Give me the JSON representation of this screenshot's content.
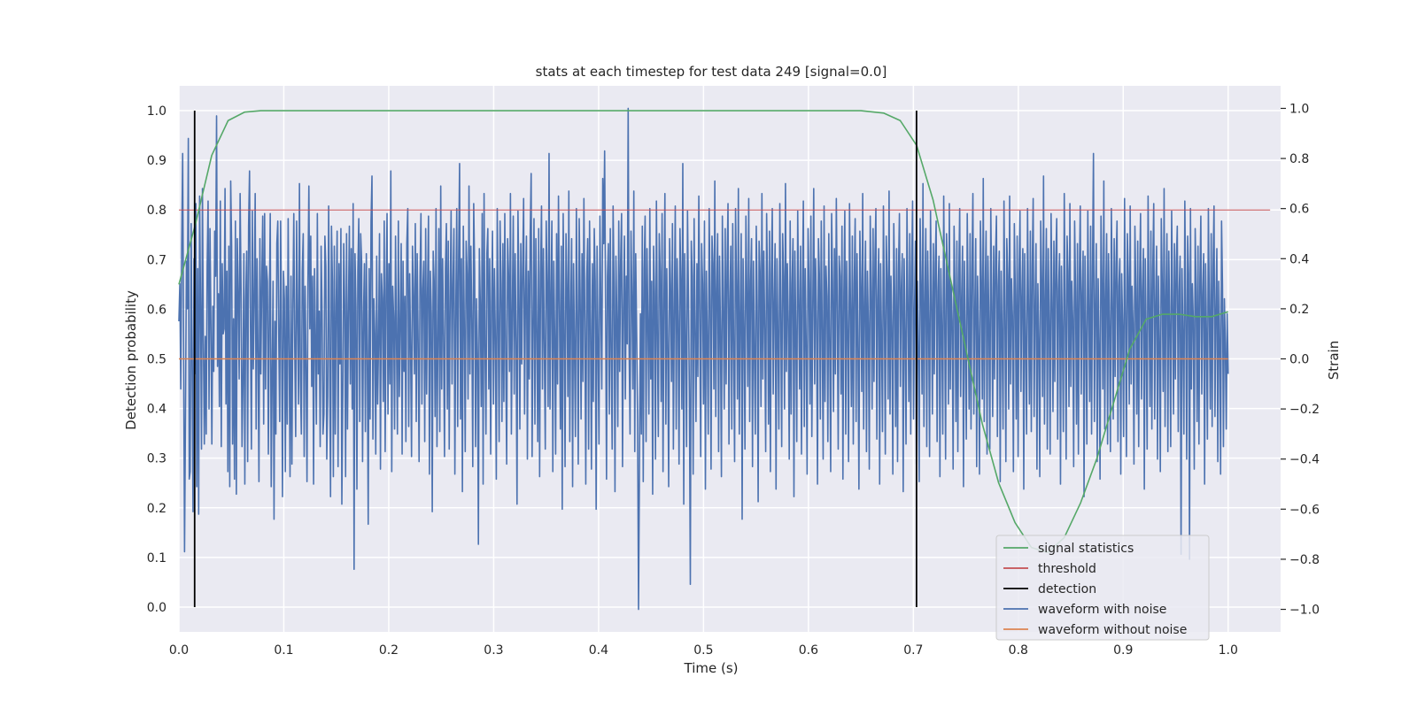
{
  "chart_data": {
    "type": "line",
    "title": "stats at each timestep for test data 249 [signal=0.0]",
    "xlabel": "Time (s)",
    "ylabel": "Detection probability",
    "ylabel_right": "Strain",
    "xlim": [
      0.0,
      1.05
    ],
    "ylim": [
      -0.05,
      1.05
    ],
    "ylim_right": [
      -1.09,
      1.09
    ],
    "xticks": [
      0.0,
      0.1,
      0.2,
      0.3,
      0.4,
      0.5,
      0.6,
      0.7,
      0.8,
      0.9,
      1.0
    ],
    "xtick_labels": [
      "0.0",
      "0.1",
      "0.2",
      "0.3",
      "0.4",
      "0.5",
      "0.6",
      "0.7",
      "0.8",
      "0.9",
      "1.0"
    ],
    "yticks": [
      0.0,
      0.1,
      0.2,
      0.3,
      0.4,
      0.5,
      0.6,
      0.7,
      0.8,
      0.9,
      1.0
    ],
    "ytick_labels": [
      "0.0",
      "0.1",
      "0.2",
      "0.3",
      "0.4",
      "0.5",
      "0.6",
      "0.7",
      "0.8",
      "0.9",
      "1.0"
    ],
    "yticks_right": [
      -1.0,
      -0.8,
      -0.6,
      -0.4,
      -0.2,
      0.0,
      0.2,
      0.4,
      0.6,
      0.8,
      1.0
    ],
    "ytick_labels_right": [
      "−1.0",
      "−0.8",
      "−0.6",
      "−0.4",
      "−0.2",
      "0.0",
      "0.2",
      "0.4",
      "0.6",
      "0.8",
      "1.0"
    ],
    "grid": true,
    "legend_position": "lower-right",
    "colors": {
      "background": "#eaeaf2",
      "grid": "#ffffff",
      "signal_statistics": "#55a868",
      "threshold": "#c44e52",
      "detection": "#000000",
      "waveform_noise": "#4c72b0",
      "waveform_clean": "#dd8452"
    },
    "legend": [
      {
        "label": "signal statistics",
        "key": "signal_statistics"
      },
      {
        "label": "threshold",
        "key": "threshold"
      },
      {
        "label": "detection",
        "key": "detection"
      },
      {
        "label": "waveform with noise",
        "key": "waveform_noise"
      },
      {
        "label": "waveform without noise",
        "key": "waveform_clean"
      }
    ],
    "signal_statistics": {
      "x": [
        0.0,
        0.0156,
        0.0313,
        0.0469,
        0.0625,
        0.0781,
        0.1,
        0.2,
        0.3,
        0.4,
        0.5,
        0.6,
        0.65,
        0.6719,
        0.6875,
        0.7031,
        0.7188,
        0.7344,
        0.75,
        0.7656,
        0.7813,
        0.7969,
        0.8125,
        0.8281,
        0.8438,
        0.8594,
        0.875,
        0.8906,
        0.9063,
        0.9219,
        0.9375,
        0.9531,
        0.9688,
        0.9844,
        1.0
      ],
      "y": [
        0.65,
        0.77,
        0.91,
        0.98,
        0.997,
        1.0,
        1.0,
        1.0,
        1.0,
        1.0,
        1.0,
        1.0,
        1.0,
        0.995,
        0.98,
        0.93,
        0.82,
        0.67,
        0.52,
        0.37,
        0.25,
        0.17,
        0.12,
        0.11,
        0.14,
        0.21,
        0.3,
        0.41,
        0.52,
        0.58,
        0.59,
        0.59,
        0.585,
        0.585,
        0.595
      ]
    },
    "threshold": {
      "y": 0.8,
      "x_start": 0.0,
      "x_end": 1.04
    },
    "detections": [
      0.015,
      0.703
    ],
    "detection_range": [
      0.0,
      1.0
    ],
    "waveform_without_noise": {
      "x_start": 0.0,
      "x_end": 1.0,
      "value": 0.0
    },
    "waveform_with_noise": {
      "x_start": 0.0,
      "x_end": 1.0,
      "y": [
        0.15,
        0.3,
        -0.12,
        0.45,
        0.82,
        0.05,
        -0.77,
        -0.22,
        0.39,
        0.2,
        0.88,
        -0.48,
        -0.45,
        0.54,
        -0.02,
        -0.61,
        0.4,
        -0.06,
        0.62,
        -0.51,
        0.36,
        -0.62,
        0.65,
        0.21,
        -0.36,
        0.68,
        0.07,
        -0.34,
        0.09,
        -0.3,
        0.37,
        0.63,
        -0.2,
        0.52,
        0.14,
        -0.34,
        0.21,
        -0.05,
        0.51,
        0.33,
        0.97,
        -0.03,
        0.26,
        -0.19,
        0.63,
        -0.35,
        0.38,
        0.1,
        0.12,
        0.68,
        -0.18,
        0.35,
        -0.45,
        0.45,
        -0.51,
        0.71,
        0.45,
        -0.34,
        0.16,
        -0.48,
        0.55,
        -0.54,
        0.48,
        0.26,
        -0.08,
        0.66,
        0.28,
        -0.35,
        -0.1,
        0.42,
        -0.5,
        0.24,
        0.43,
        -0.41,
        0.53,
        0.75,
        0.13,
        -0.36,
        0.59,
        -0.04,
        0.24,
        0.66,
        -0.28,
        0.4,
        0.02,
        -0.49,
        0.48,
        -0.06,
        0.31,
        0.57,
        -0.26,
        0.58,
        -0.12,
        0.37,
        0.31,
        -0.38,
        0.2,
        0.58,
        -0.51,
        -0.08,
        0.31,
        -0.64,
        0.15,
        -0.3,
        0.46,
        0.55,
        0.1,
        -0.25,
        0.55,
        0.12,
        -0.55,
        0.35,
        0.24,
        -0.45,
        0.29,
        -0.26,
        0.56,
        0.05,
        -0.47,
        0.33,
        -0.42,
        0.21,
        0.58,
        0.05,
        -0.31,
        0.55,
        0.16,
        -0.18,
        0.7,
        -0.08,
        -0.3,
        0.35,
        0.5,
        -0.39,
        0.29,
        -0.02,
        -0.49,
        0.3,
        0.69,
        0.12,
        0.49,
        -0.11,
        0.33,
        -0.5,
        0.36,
        0.07,
        -0.26,
        0.58,
        -0.06,
        0.19,
        -0.35,
        0.45,
        0.19,
        -0.3,
        -0.22,
        0.49,
        0.37,
        -0.4,
        -0.15,
        0.61,
        0.03,
        -0.55,
        0.53,
        0.31,
        -0.47,
        0.45,
        -0.3,
        0.21,
        0.51,
        -0.43,
        0.38,
        -0.02,
        0.52,
        -0.58,
        -0.15,
        0.46,
        0.22,
        -0.47,
        0.5,
        -0.28,
        0.19,
        0.53,
        -0.1,
        0.44,
        -0.2,
        0.62,
        -0.84,
        0.42,
        0.2,
        -0.52,
        0.35,
        0.56,
        -0.25,
        0.5,
        0.39,
        -0.41,
        0.18,
        0.38,
        -0.29,
        0.42,
        0.03,
        -0.66,
        0.36,
        -0.24,
        0.55,
        0.73,
        -0.32,
        0.24,
        0.1,
        -0.38,
        0.41,
        -0.18,
        0.07,
        0.5,
        -0.44,
        0.34,
        0.24,
        -0.17,
        0.55,
        -0.37,
        0.27,
        0.58,
        -0.22,
        0.38,
        -0.1,
        0.75,
        -0.45,
        0.29,
        0.17,
        -0.28,
        0.49,
        0.08,
        -0.3,
        0.55,
        -0.15,
        0.14,
        0.46,
        -0.38,
        0.39,
        -0.05,
        0.25,
        -0.33,
        0.46,
        0.6,
        -0.27,
        0.34,
        0.05,
        -0.39,
        0.45,
        0.25,
        -0.06,
        0.54,
        -0.25,
        0.42,
        0.08,
        -0.41,
        0.33,
        0.58,
        -0.18,
        0.28,
        0.39,
        -0.33,
        0.52,
        -0.14,
        0.27,
        0.57,
        -0.46,
        0.35,
        0.18,
        -0.61,
        0.43,
        0.31,
        -0.23,
        0.6,
        -0.35,
        0.06,
        0.52,
        -0.29,
        0.69,
        -0.12,
        0.4,
        0.08,
        -0.39,
        0.36,
        0.54,
        -0.2,
        0.47,
        -0.36,
        0.24,
        0.59,
        -0.1,
        0.3,
        0.52,
        -0.46,
        0.2,
        0.6,
        -0.27,
        0.41,
        0.78,
        -0.24,
        0.4,
        -0.53,
        0.53,
        0.14,
        -0.37,
        0.47,
        0.34,
        -0.16,
        0.69,
        -0.06,
        0.45,
        0.16,
        -0.43,
        0.62,
        0.35,
        -0.35,
        0.24,
        0.02,
        -0.74,
        0.44,
        0.22,
        -0.19,
        0.58,
        -0.5,
        0.66,
        0.05,
        -0.3,
        0.42,
        0.52,
        -0.12,
        0.4,
        -0.38,
        0.22,
        0.51,
        -0.18,
        0.36,
        0.09,
        -0.48,
        0.6,
        0.16,
        -0.33,
        0.55,
        0.3,
        -0.25,
        0.46,
        -0.17,
        0.58,
        0.01,
        -0.42,
        0.48,
        0.34,
        -0.05,
        0.66,
        -0.3,
        0.19,
        0.57,
        -0.14,
        0.42,
        0.07,
        -0.58,
        0.59,
        0.28,
        -0.28,
        0.46,
        -0.02,
        0.37,
        0.64,
        -0.22,
        0.26,
        0.49,
        -0.4,
        0.35,
        -0.08,
        0.5,
        0.74,
        -0.39,
        0.14,
        0.56,
        -0.26,
        0.48,
        0.11,
        -0.33,
        0.52,
        -0.47,
        0.34,
        0.61,
        -0.12,
        0.44,
        0.03,
        -0.36,
        0.55,
        0.3,
        -0.19,
        0.82,
        -0.2,
        0.24,
        0.55,
        -0.45,
        0.39,
        0.09,
        -0.38,
        0.5,
        -0.1,
        0.65,
        0.22,
        -0.28,
        0.45,
        -0.6,
        0.58,
        0.12,
        -0.43,
        0.5,
        0.29,
        -0.15,
        0.67,
        -0.33,
        0.2,
        0.48,
        -0.51,
        0.38,
        0.04,
        -0.31,
        0.6,
        0.18,
        -0.42,
        0.56,
        0.26,
        -0.24,
        0.42,
        -0.09,
        0.64,
        0.15,
        -0.5,
        0.32,
        0.48,
        -0.36,
        0.55,
        0.13,
        -0.44,
        0.38,
        -0.17,
        0.52,
        0.31,
        -0.6,
        0.45,
        0.06,
        -0.34,
        0.57,
        0.21,
        -0.12,
        0.72,
        0.46,
        0.83,
        0.23,
        -0.48,
        0.33,
        0.46,
        -0.22,
        0.52,
        0.02,
        -0.36,
        0.61,
        0.29,
        -0.53,
        0.41,
        0.16,
        -0.27,
        0.55,
        -0.05,
        0.39,
        0.58,
        -0.43,
        0.2,
        0.49,
        -0.16,
        0.33,
        0.06,
        1.0,
        0.05,
        -0.3,
        0.51,
        0.24,
        -0.12,
        0.67,
        -0.37,
        0.42,
        0.1,
        -0.24,
        -1.0,
        -0.42,
        0.18,
        -0.3,
        0.53,
        -0.49,
        0.36,
        0.57,
        -0.33,
        0.44,
        0.14,
        -0.22,
        0.6,
        -0.08,
        0.31,
        -0.54,
        0.45,
        0.26,
        -0.4,
        0.63,
        0.1,
        -0.31,
        0.5,
        0.35,
        -0.17,
        0.58,
        -0.45,
        0.22,
        0.66,
        -0.26,
        0.36,
        0.04,
        -0.51,
        0.48,
        0.29,
        -0.09,
        0.54,
        -0.36,
        0.2,
        0.61,
        -0.28,
        0.4,
        0.15,
        -0.42,
        0.52,
        0.32,
        -0.2,
        0.78,
        -0.58,
        0.42,
        0.08,
        -0.35,
        0.59,
        0.25,
        -0.14,
        -0.9,
        0.47,
        0.33,
        -0.46,
        0.56,
        0.12,
        -0.25,
        0.38,
        -0.07,
        0.65,
        0.19,
        -0.39,
        0.46,
        0.3,
        -0.18,
        0.55,
        -0.52,
        0.35,
        0.07,
        -0.3,
        0.6,
        0.24,
        -0.44,
        0.49,
        0.38,
        -0.12,
        0.71,
        -0.23,
        0.27,
        0.5,
        -0.37,
        0.41,
        0.11,
        -0.47,
        0.57,
        0.2,
        -0.2,
        0.52,
        -0.1,
        0.36,
        0.62,
        -0.34,
        0.23,
        0.45,
        -0.28,
        0.54,
        0.05,
        -0.41,
        0.6,
        0.3,
        -0.16,
        0.68,
        -0.3,
        0.18,
        0.5,
        -0.64,
        0.4,
        0.13,
        -0.36,
        0.57,
        0.26,
        -0.11,
        0.64,
        -0.25,
        0.31,
        0.48,
        -0.43,
        0.39,
        0.02,
        -0.3,
        0.53,
        0.21,
        -0.57,
        0.47,
        0.35,
        -0.19,
        0.66,
        -0.08,
        0.43,
        0.12,
        -0.37,
        0.58,
        0.27,
        -0.26,
        0.51,
        -0.45,
        0.34,
        0.6,
        -0.14,
        0.22,
        0.46,
        -0.52,
        0.4,
        0.09,
        -0.28,
        0.62,
        0.18,
        -0.35,
        0.5,
        0.33,
        -0.2,
        0.7,
        -0.05,
        0.38,
        0.15,
        -0.4,
        0.55,
        -0.22,
        0.3,
        0.48,
        -0.55,
        0.43,
        0.1,
        -0.33,
        0.59,
        0.24,
        -0.12,
        0.45,
        -0.38,
        0.28,
        0.63,
        -0.27,
        0.36,
        0.06,
        -0.46,
        0.52,
        0.3,
        -0.18,
        0.57,
        -0.31,
        0.2,
        0.68,
        -0.1,
        0.4,
        0.15,
        -0.5,
        0.48,
        0.34,
        -0.24,
        0.55,
        0.12,
        -0.4,
        0.61,
        -0.17,
        0.37,
        0.25,
        -0.33,
        0.5,
        0.07,
        -0.45,
        0.58,
        0.31,
        -0.21,
        0.44,
        -0.06,
        0.64,
        0.2,
        -0.36,
        0.41,
        0.33,
        -0.14,
        0.53,
        -0.48,
        0.26,
        0.59,
        -0.3,
        0.39,
        0.11,
        -0.41,
        0.62,
        0.22,
        -0.19,
        0.49,
        -0.34,
        0.3,
        0.56,
        -0.25,
        0.42,
        0.04,
        -0.52,
        0.51,
        0.29,
        -0.13,
        0.66,
        -0.28,
        0.21,
        0.47,
        -0.37,
        0.35,
        0.14,
        -0.44,
        0.57,
        0.27,
        -0.2,
        0.52,
        -0.09,
        0.4,
        0.6,
        -0.32,
        0.24,
        0.44,
        -0.5,
        0.38,
        0.08,
        -0.29,
        0.61,
        0.19,
        -0.38,
        0.49,
        0.32,
        -0.16,
        0.67,
        -0.22,
        0.33,
        0.13,
        -0.46,
        0.54,
        0.26,
        -0.27,
        0.44,
        -0.41,
        0.35,
        0.58,
        -0.11,
        0.28,
        0.42,
        -0.53,
        0.4,
        0.1,
        -0.34,
        0.6,
        0.23,
        -0.17,
        0.5,
        -0.3,
        0.37,
        0.63,
        -0.24,
        0.2,
        0.47,
        -0.42,
        0.31,
        0.05,
        -0.49,
        0.56,
        0.3,
        -0.14,
        0.7,
        -0.27,
        0.22,
        0.52,
        -0.35,
        0.43,
        0.16,
        -0.39,
        0.59,
        0.25,
        -0.22,
        0.46,
        -0.06,
        0.38,
        0.55,
        -0.33,
        0.27,
        0.41,
        -0.47,
        0.36,
        0.12,
        -0.3,
        0.65,
        0.2,
        -0.4,
        0.5,
        0.34,
        -0.18,
        0.62,
        -0.12,
        0.3,
        0.15,
        -0.44,
        0.53,
        0.28,
        -0.25,
        0.47,
        -0.37,
        0.32,
        0.6,
        -0.15,
        0.24,
        0.45,
        -0.51,
        0.39,
        0.07,
        -0.32,
        0.58,
        0.21,
        -0.2,
        0.5,
        -0.28,
        0.35,
        0.66,
        -0.22,
        0.19,
        0.48,
        -0.43,
        0.33,
        0.09,
        -0.46,
        0.55,
        0.31,
        -0.16,
        0.72,
        -0.25,
        0.26,
        0.51,
        -0.38,
        0.41,
        0.14,
        -0.36,
        0.6,
        0.23,
        -0.23,
        0.45,
        -0.08,
        0.4,
        0.57,
        -0.31,
        0.29,
        0.43,
        -0.49,
        0.35,
        0.1,
        -0.28,
        0.63,
        0.18,
        -0.41,
        0.48,
        0.33,
        -0.2,
        0.65,
        -0.1,
        0.32,
        0.17,
        -0.45,
        0.54,
        0.26,
        -0.24,
        0.49,
        -0.39,
        0.34,
        0.59,
        -0.13,
        0.25,
        0.44,
        -0.52,
        0.42,
        0.06,
        -0.3,
        0.6,
        0.22,
        -0.18,
        0.51,
        -0.29,
        0.37,
        0.64,
        -0.23,
        0.21,
        0.46,
        -0.44,
        0.3,
        0.08,
        -0.47,
        0.55,
        0.32,
        -0.15,
        0.73,
        -0.26,
        0.23,
        0.52,
        -0.36,
        0.44,
        0.15,
        -0.38,
        0.58,
        0.24,
        -0.21,
        0.47,
        -0.09,
        0.39,
        0.56,
        -0.32,
        0.28,
        0.42,
        -0.5,
        0.37,
        0.11,
        -0.29,
        0.66,
        0.2,
        -0.4,
        0.49,
        0.35,
        -0.19,
        0.62,
        -0.11,
        0.31,
        0.16,
        -0.43,
        0.55,
        0.27,
        -0.26,
        0.46,
        -0.38,
        0.33,
        0.61,
        -0.14,
        0.26,
        0.43,
        -0.55,
        0.41,
        0.09,
        -0.34,
        0.59,
        0.21,
        -0.17,
        0.53,
        -0.3,
        0.36,
        0.82,
        -0.25,
        0.2,
        0.46,
        -0.41,
        0.32,
        0.06,
        -0.48,
        0.57,
        0.3,
        -0.12,
        0.71,
        -0.28,
        0.24,
        0.5,
        -0.34,
        0.42,
        0.13,
        -0.37,
        0.6,
        0.25,
        -0.24,
        0.48,
        -0.07,
        0.38,
        0.55,
        -0.33,
        0.29,
        0.4,
        -0.46,
        0.34,
        0.12,
        -0.31,
        0.64,
        0.19,
        -0.39,
        0.5,
        0.33,
        -0.18,
        0.61,
        -0.1,
        0.29,
        0.14,
        -0.42,
        0.53,
        0.28,
        -0.22,
        0.47,
        -0.35,
        0.31,
        0.58,
        -0.16,
        0.27,
        0.44,
        -0.52,
        0.4,
        0.08,
        -0.36,
        0.65,
        0.22,
        -0.19,
        0.51,
        -0.28,
        0.36,
        0.62,
        -0.24,
        0.22,
        0.45,
        -0.4,
        0.33,
        0.07,
        -0.45,
        0.56,
        0.3,
        -0.13,
        0.68,
        -0.27,
        0.25,
        0.5,
        -0.37,
        0.43,
        0.14,
        -0.35,
        0.59,
        0.24,
        -0.22,
        0.46,
        -0.08,
        0.39,
        0.53,
        -0.29,
        0.27,
        0.41,
        -0.78,
        0.36,
        0.1,
        -0.3,
        0.63,
        0.19,
        -0.4,
        0.49,
        0.34,
        -0.8,
        0.6,
        -0.12,
        0.3,
        0.16,
        -0.44,
        0.52,
        0.27,
        -0.25,
        0.45,
        -0.34,
        0.32,
        0.57,
        -0.14,
        0.26,
        0.42,
        -0.5,
        0.38,
        0.09,
        -0.32,
        0.6,
        0.21,
        -0.2,
        0.5,
        -0.27,
        0.37,
        0.61,
        -0.23,
        0.2,
        0.44,
        -0.41,
        0.31,
        0.08,
        -0.46,
        0.55,
        0.29,
        -0.35,
        0.24,
        0.06,
        -0.28,
        0.18,
        -0.06
      ]
    }
  }
}
